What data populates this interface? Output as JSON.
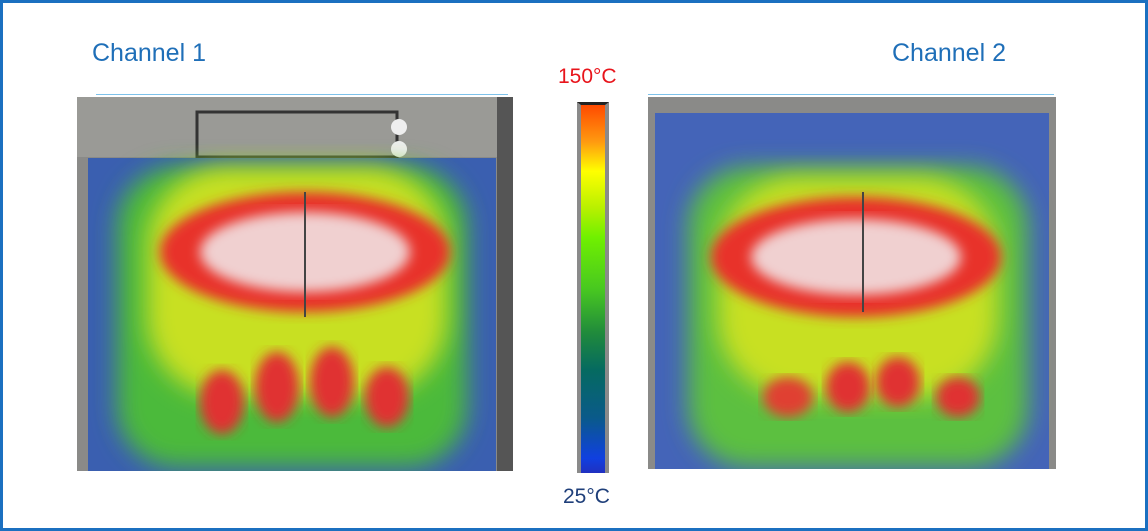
{
  "channels": [
    {
      "label": "Channel 1"
    },
    {
      "label": "Channel 2"
    }
  ],
  "colorbar": {
    "max_label": "150°C",
    "min_label": "25°C",
    "max_color": "#e8141b",
    "min_color": "#1f3f7a"
  },
  "accent": "#1b70c0"
}
